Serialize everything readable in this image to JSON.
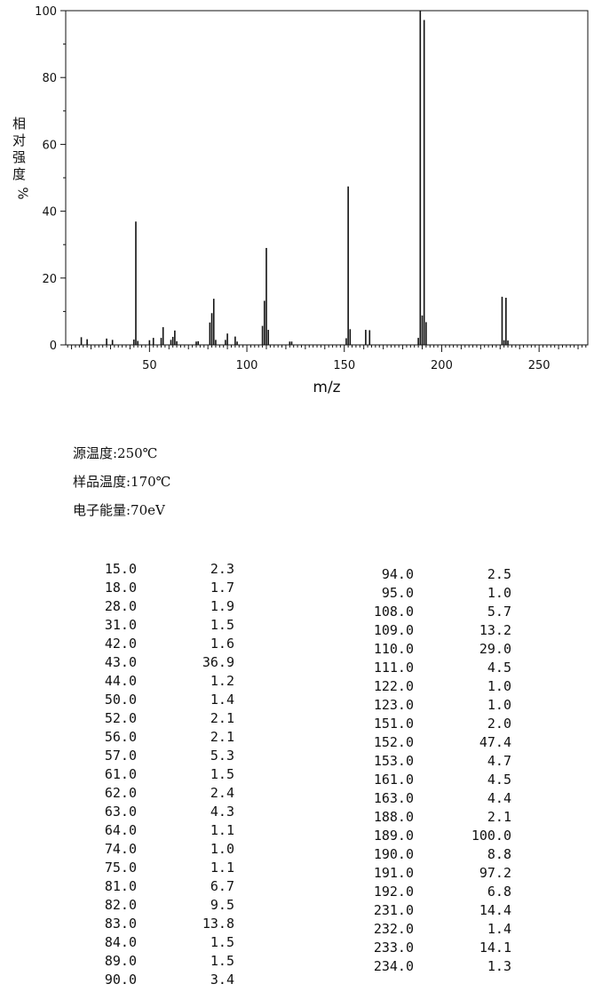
{
  "chart_data": {
    "type": "bar",
    "xlabel": "m/z",
    "ylabel": "相对强度",
    "ylabel_unit": "%",
    "xlim": [
      7,
      275
    ],
    "ylim": [
      0,
      100
    ],
    "x_ticks": [
      50,
      100,
      150,
      200,
      250
    ],
    "y_ticks": [
      0,
      20,
      40,
      60,
      80,
      100
    ],
    "x": [
      15,
      18,
      28,
      31,
      42,
      43,
      44,
      50,
      52,
      56,
      57,
      61,
      62,
      63,
      64,
      74,
      75,
      81,
      82,
      83,
      84,
      89,
      90,
      94,
      95,
      108,
      109,
      110,
      111,
      122,
      123,
      151,
      152,
      153,
      161,
      163,
      188,
      189,
      190,
      191,
      192,
      231,
      232,
      233,
      234
    ],
    "values": [
      2.3,
      1.7,
      1.9,
      1.5,
      1.6,
      36.9,
      1.2,
      1.4,
      2.1,
      2.1,
      5.3,
      1.5,
      2.4,
      4.3,
      1.1,
      1.0,
      1.1,
      6.7,
      9.5,
      13.8,
      1.5,
      1.5,
      3.4,
      2.5,
      1.0,
      5.7,
      13.2,
      29.0,
      4.5,
      1.0,
      1.0,
      2.0,
      47.4,
      4.7,
      4.5,
      4.4,
      2.1,
      100.0,
      8.8,
      97.2,
      6.8,
      14.4,
      1.4,
      14.1,
      1.3
    ],
    "grid": false
  },
  "conditions": [
    "源温度:250℃",
    "样品温度:170℃",
    "电子能量:70eV"
  ],
  "peak_table": {
    "left": [
      [
        "15.0",
        "2.3"
      ],
      [
        "18.0",
        "1.7"
      ],
      [
        "28.0",
        "1.9"
      ],
      [
        "31.0",
        "1.5"
      ],
      [
        "42.0",
        "1.6"
      ],
      [
        "43.0",
        "36.9"
      ],
      [
        "44.0",
        "1.2"
      ],
      [
        "50.0",
        "1.4"
      ],
      [
        "52.0",
        "2.1"
      ],
      [
        "56.0",
        "2.1"
      ],
      [
        "57.0",
        "5.3"
      ],
      [
        "61.0",
        "1.5"
      ],
      [
        "62.0",
        "2.4"
      ],
      [
        "63.0",
        "4.3"
      ],
      [
        "64.0",
        "1.1"
      ],
      [
        "74.0",
        "1.0"
      ],
      [
        "75.0",
        "1.1"
      ],
      [
        "81.0",
        "6.7"
      ],
      [
        "82.0",
        "9.5"
      ],
      [
        "83.0",
        "13.8"
      ],
      [
        "84.0",
        "1.5"
      ],
      [
        "89.0",
        "1.5"
      ],
      [
        "90.0",
        "3.4"
      ]
    ],
    "right": [
      [
        "94.0",
        "2.5"
      ],
      [
        "95.0",
        "1.0"
      ],
      [
        "108.0",
        "5.7"
      ],
      [
        "109.0",
        "13.2"
      ],
      [
        "110.0",
        "29.0"
      ],
      [
        "111.0",
        "4.5"
      ],
      [
        "122.0",
        "1.0"
      ],
      [
        "123.0",
        "1.0"
      ],
      [
        "151.0",
        "2.0"
      ],
      [
        "152.0",
        "47.4"
      ],
      [
        "153.0",
        "4.7"
      ],
      [
        "161.0",
        "4.5"
      ],
      [
        "163.0",
        "4.4"
      ],
      [
        "188.0",
        "2.1"
      ],
      [
        "189.0",
        "100.0"
      ],
      [
        "190.0",
        "8.8"
      ],
      [
        "191.0",
        "97.2"
      ],
      [
        "192.0",
        "6.8"
      ],
      [
        "231.0",
        "14.4"
      ],
      [
        "232.0",
        "1.4"
      ],
      [
        "233.0",
        "14.1"
      ],
      [
        "234.0",
        "1.3"
      ]
    ]
  },
  "colors": {
    "bar": "#111111",
    "axis": "#111111",
    "background": "#ffffff"
  }
}
